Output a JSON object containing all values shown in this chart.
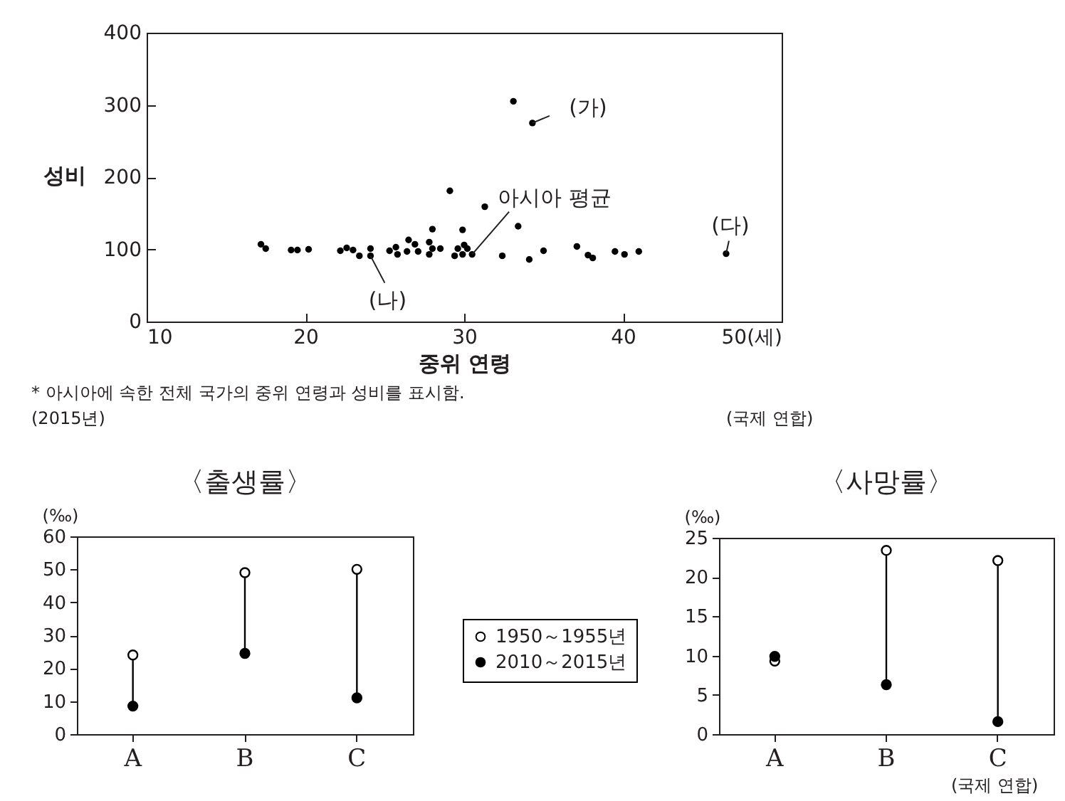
{
  "chart_data": [
    {
      "type": "scatter",
      "xlabel": "중위 연령",
      "ylabel": "성비",
      "marker": "circle",
      "xlim": [
        10,
        50
      ],
      "xticks": [
        10,
        20,
        30,
        40,
        {
          "value": 50,
          "label": "50(세)"
        }
      ],
      "ylim": [
        0,
        400
      ],
      "yticks": [
        0,
        100,
        200,
        300,
        400
      ],
      "color": "#000000",
      "x": [
        17.2,
        17.5,
        19.1,
        19.5,
        20.2,
        22.2,
        22.6,
        23.0,
        23.4,
        24.1,
        24.1,
        25.3,
        25.7,
        25.8,
        26.5,
        26.4,
        26.9,
        27.1,
        27.8,
        27.8,
        28.0,
        28.0,
        28.5,
        29.1,
        29.4,
        29.6,
        29.9,
        30.0,
        29.9,
        30.2,
        30.5,
        31.3,
        32.4,
        33.1,
        33.4,
        34.3,
        34.1,
        35.0,
        37.1,
        37.8,
        38.1,
        39.5,
        40.1,
        41.0,
        46.5
      ],
      "values": [
        107,
        101,
        99,
        99,
        100,
        98,
        102,
        99,
        91,
        101,
        91,
        98,
        103,
        93,
        113,
        97,
        107,
        97,
        110,
        93,
        128,
        101,
        101,
        181,
        91,
        101,
        127,
        106,
        93,
        101,
        93,
        159,
        91,
        305,
        132,
        275,
        86,
        98,
        104,
        92,
        88,
        97,
        93,
        97,
        94
      ],
      "annotations": [
        {
          "text": "(가)",
          "x": 34.3,
          "y": 275
        },
        {
          "text": "(나)",
          "x": 24.1,
          "y": 91
        },
        {
          "text": "아시아 평균",
          "x": 30.5,
          "y": 93
        },
        {
          "text": "(다)",
          "x": 46.5,
          "y": 94
        },
        "* 아시아에 속한 전체 국가의 중위 연령과 성비를 표시함.",
        "(2015년)",
        "(국제 연합)"
      ]
    },
    {
      "type": "scatter",
      "title": "〈출생률〉",
      "ylabel": "(‰)",
      "marker": "circle",
      "legend": "right",
      "categories": [
        "A",
        "B",
        "C"
      ],
      "ylim": [
        0,
        60
      ],
      "yticks": [
        0,
        10,
        20,
        30,
        40,
        50,
        60
      ],
      "series": [
        {
          "name": "1950～1955년",
          "color": "#000000",
          "values": [
            24,
            49,
            50
          ]
        },
        {
          "name": "2010～2015년",
          "color": "#000000",
          "values": [
            8.5,
            24.5,
            11
          ]
        }
      ]
    },
    {
      "type": "scatter",
      "title": "〈사망률〉",
      "ylabel": "(‰)",
      "marker": "circle",
      "categories": [
        "A",
        "B",
        "C"
      ],
      "ylim": [
        0,
        25
      ],
      "yticks": [
        0,
        5,
        10,
        15,
        20,
        25
      ],
      "series": [
        {
          "color": "#000000",
          "values": [
            9.3,
            23.4,
            22.1
          ]
        },
        {
          "color": "#000000",
          "values": [
            9.9,
            6.3,
            1.6
          ]
        }
      ],
      "annotations": [
        "(국제 연합)"
      ]
    }
  ]
}
